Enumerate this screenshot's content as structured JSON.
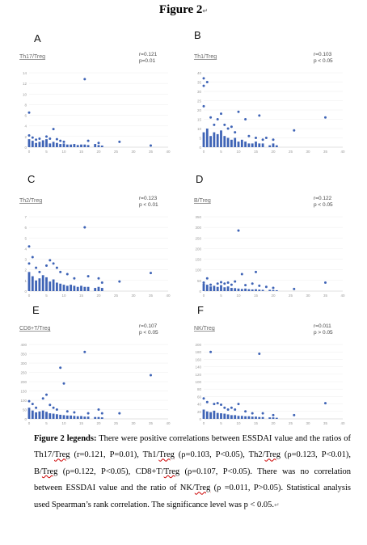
{
  "figure_title": "Figure 2",
  "panels": [
    {
      "letter": "A",
      "col": 0,
      "row": 0
    },
    {
      "letter": "B",
      "col": 1,
      "row": 0
    },
    {
      "letter": "C",
      "col": 0,
      "row": 1
    },
    {
      "letter": "D",
      "col": 1,
      "row": 1
    },
    {
      "letter": "E",
      "col": 0,
      "row": 2
    },
    {
      "letter": "F",
      "col": 1,
      "row": 2
    }
  ],
  "chart_data": [
    {
      "type": "scatter",
      "title": "Th17/Treg",
      "stat_r": "r=0.121",
      "stat_p": "p=0.01",
      "xlim": [
        0,
        40
      ],
      "ylim": [
        0,
        14
      ],
      "yticks": [
        "0",
        "2",
        "4",
        "6",
        "8",
        "10",
        "12",
        "14"
      ],
      "xticks": [
        "0",
        "5",
        "10",
        "15",
        "20",
        "25",
        "30",
        "35",
        "40"
      ],
      "bars": [
        {
          "x": 0,
          "y": 1.5
        },
        {
          "x": 1,
          "y": 1.2
        },
        {
          "x": 2,
          "y": 0.8
        },
        {
          "x": 3,
          "y": 1.0
        },
        {
          "x": 4,
          "y": 1.3
        },
        {
          "x": 5,
          "y": 1.5
        },
        {
          "x": 6,
          "y": 0.7
        },
        {
          "x": 7,
          "y": 1.0
        },
        {
          "x": 8,
          "y": 0.8
        },
        {
          "x": 9,
          "y": 0.6
        },
        {
          "x": 10,
          "y": 0.7
        },
        {
          "x": 11,
          "y": 0.5
        },
        {
          "x": 12,
          "y": 0.5
        },
        {
          "x": 13,
          "y": 0.6
        },
        {
          "x": 14,
          "y": 0.4
        },
        {
          "x": 15,
          "y": 0.5
        },
        {
          "x": 16,
          "y": 0.5
        },
        {
          "x": 17,
          "y": 0.4
        },
        {
          "x": 19,
          "y": 0.6
        },
        {
          "x": 20,
          "y": 0.4
        },
        {
          "x": 21,
          "y": 0.3
        }
      ],
      "points": [
        {
          "x": 0,
          "y": 6.5
        },
        {
          "x": 0,
          "y": 2.2
        },
        {
          "x": 1,
          "y": 1.8
        },
        {
          "x": 2,
          "y": 1.4
        },
        {
          "x": 3,
          "y": 1.6
        },
        {
          "x": 5,
          "y": 2.0
        },
        {
          "x": 6,
          "y": 1.6
        },
        {
          "x": 7,
          "y": 3.4
        },
        {
          "x": 8,
          "y": 1.5
        },
        {
          "x": 9,
          "y": 1.2
        },
        {
          "x": 10,
          "y": 1.0
        },
        {
          "x": 16,
          "y": 12.8
        },
        {
          "x": 17,
          "y": 1.2
        },
        {
          "x": 20,
          "y": 0.8
        },
        {
          "x": 26,
          "y": 1.0
        },
        {
          "x": 35,
          "y": 0.3
        }
      ]
    },
    {
      "type": "scatter",
      "title": "Th1/Treg",
      "stat_r": "r=0.103",
      "stat_p": "p < 0.05",
      "xlim": [
        0,
        40
      ],
      "ylim": [
        0,
        40
      ],
      "yticks": [
        "0",
        "5",
        "10",
        "15",
        "20",
        "25",
        "30",
        "35",
        "40"
      ],
      "xticks": [
        "0",
        "5",
        "10",
        "15",
        "20",
        "25",
        "30",
        "35",
        "40"
      ],
      "bars": [
        {
          "x": 0,
          "y": 8
        },
        {
          "x": 1,
          "y": 10
        },
        {
          "x": 2,
          "y": 6
        },
        {
          "x": 3,
          "y": 8
        },
        {
          "x": 4,
          "y": 7
        },
        {
          "x": 5,
          "y": 9
        },
        {
          "x": 6,
          "y": 6
        },
        {
          "x": 7,
          "y": 5
        },
        {
          "x": 8,
          "y": 4
        },
        {
          "x": 9,
          "y": 5
        },
        {
          "x": 10,
          "y": 3
        },
        {
          "x": 11,
          "y": 4
        },
        {
          "x": 12,
          "y": 3
        },
        {
          "x": 13,
          "y": 2
        },
        {
          "x": 14,
          "y": 2
        },
        {
          "x": 15,
          "y": 3
        },
        {
          "x": 16,
          "y": 2
        },
        {
          "x": 17,
          "y": 2
        },
        {
          "x": 19,
          "y": 1
        },
        {
          "x": 20,
          "y": 2
        },
        {
          "x": 21,
          "y": 1
        }
      ],
      "points": [
        {
          "x": 0,
          "y": 37
        },
        {
          "x": 0,
          "y": 33
        },
        {
          "x": 1,
          "y": 35
        },
        {
          "x": 0,
          "y": 22
        },
        {
          "x": 2,
          "y": 16
        },
        {
          "x": 3,
          "y": 12
        },
        {
          "x": 4,
          "y": 15
        },
        {
          "x": 5,
          "y": 18
        },
        {
          "x": 6,
          "y": 12
        },
        {
          "x": 7,
          "y": 10
        },
        {
          "x": 8,
          "y": 11
        },
        {
          "x": 9,
          "y": 8
        },
        {
          "x": 10,
          "y": 19
        },
        {
          "x": 12,
          "y": 15
        },
        {
          "x": 13,
          "y": 6
        },
        {
          "x": 15,
          "y": 5
        },
        {
          "x": 16,
          "y": 17
        },
        {
          "x": 17,
          "y": 4
        },
        {
          "x": 18,
          "y": 5
        },
        {
          "x": 20,
          "y": 4
        },
        {
          "x": 26,
          "y": 9
        },
        {
          "x": 35,
          "y": 16
        }
      ]
    },
    {
      "type": "scatter",
      "title": "Th2/Treg",
      "stat_r": "r=0.123",
      "stat_p": "p < 0.01",
      "xlim": [
        0,
        40
      ],
      "ylim": [
        0,
        7
      ],
      "yticks": [
        "0",
        "1",
        "2",
        "3",
        "4",
        "5",
        "6",
        "7"
      ],
      "xticks": [
        "0",
        "5",
        "10",
        "15",
        "20",
        "25",
        "30",
        "35",
        "40"
      ],
      "bars": [
        {
          "x": 0,
          "y": 1.8
        },
        {
          "x": 1,
          "y": 1.4
        },
        {
          "x": 2,
          "y": 1.0
        },
        {
          "x": 3,
          "y": 1.2
        },
        {
          "x": 4,
          "y": 1.5
        },
        {
          "x": 5,
          "y": 1.3
        },
        {
          "x": 6,
          "y": 0.9
        },
        {
          "x": 7,
          "y": 1.1
        },
        {
          "x": 8,
          "y": 0.8
        },
        {
          "x": 9,
          "y": 0.7
        },
        {
          "x": 10,
          "y": 0.6
        },
        {
          "x": 11,
          "y": 0.5
        },
        {
          "x": 12,
          "y": 0.6
        },
        {
          "x": 13,
          "y": 0.5
        },
        {
          "x": 14,
          "y": 0.4
        },
        {
          "x": 15,
          "y": 0.5
        },
        {
          "x": 16,
          "y": 0.4
        },
        {
          "x": 17,
          "y": 0.4
        },
        {
          "x": 19,
          "y": 0.3
        },
        {
          "x": 20,
          "y": 0.4
        },
        {
          "x": 21,
          "y": 0.3
        }
      ],
      "points": [
        {
          "x": 0,
          "y": 4.2
        },
        {
          "x": 1,
          "y": 3.2
        },
        {
          "x": 0,
          "y": 2.6
        },
        {
          "x": 2,
          "y": 2.2
        },
        {
          "x": 3,
          "y": 1.8
        },
        {
          "x": 5,
          "y": 2.4
        },
        {
          "x": 6,
          "y": 2.9
        },
        {
          "x": 7,
          "y": 2.6
        },
        {
          "x": 8,
          "y": 2.2
        },
        {
          "x": 9,
          "y": 1.8
        },
        {
          "x": 11,
          "y": 1.6
        },
        {
          "x": 13,
          "y": 1.2
        },
        {
          "x": 16,
          "y": 6.0
        },
        {
          "x": 17,
          "y": 1.4
        },
        {
          "x": 20,
          "y": 1.2
        },
        {
          "x": 21,
          "y": 0.8
        },
        {
          "x": 26,
          "y": 0.9
        },
        {
          "x": 35,
          "y": 1.7
        }
      ]
    },
    {
      "type": "scatter",
      "title": "B/Treg",
      "stat_r": "r=0.122",
      "stat_p": "p < 0.05",
      "xlim": [
        0,
        40
      ],
      "ylim": [
        0,
        350
      ],
      "yticks": [
        "0",
        "50",
        "100",
        "150",
        "200",
        "250",
        "300",
        "350"
      ],
      "xticks": [
        "0",
        "5",
        "10",
        "15",
        "20",
        "25",
        "30",
        "35",
        "40"
      ],
      "bars": [
        {
          "x": 0,
          "y": 35
        },
        {
          "x": 1,
          "y": 30
        },
        {
          "x": 2,
          "y": 22
        },
        {
          "x": 3,
          "y": 25
        },
        {
          "x": 4,
          "y": 20
        },
        {
          "x": 5,
          "y": 28
        },
        {
          "x": 6,
          "y": 18
        },
        {
          "x": 7,
          "y": 22
        },
        {
          "x": 8,
          "y": 15
        },
        {
          "x": 9,
          "y": 14
        },
        {
          "x": 10,
          "y": 12
        },
        {
          "x": 11,
          "y": 10
        },
        {
          "x": 12,
          "y": 12
        },
        {
          "x": 13,
          "y": 9
        },
        {
          "x": 14,
          "y": 8
        },
        {
          "x": 15,
          "y": 9
        },
        {
          "x": 16,
          "y": 7
        },
        {
          "x": 17,
          "y": 6
        },
        {
          "x": 19,
          "y": 6
        },
        {
          "x": 20,
          "y": 5
        },
        {
          "x": 21,
          "y": 4
        }
      ],
      "points": [
        {
          "x": 0,
          "y": 40
        },
        {
          "x": 1,
          "y": 60
        },
        {
          "x": 2,
          "y": 30
        },
        {
          "x": 4,
          "y": 35
        },
        {
          "x": 5,
          "y": 42
        },
        {
          "x": 6,
          "y": 35
        },
        {
          "x": 7,
          "y": 40
        },
        {
          "x": 8,
          "y": 30
        },
        {
          "x": 9,
          "y": 45
        },
        {
          "x": 10,
          "y": 285
        },
        {
          "x": 11,
          "y": 80
        },
        {
          "x": 12,
          "y": 28
        },
        {
          "x": 14,
          "y": 35
        },
        {
          "x": 15,
          "y": 90
        },
        {
          "x": 16,
          "y": 25
        },
        {
          "x": 18,
          "y": 20
        },
        {
          "x": 20,
          "y": 15
        },
        {
          "x": 26,
          "y": 10
        },
        {
          "x": 35,
          "y": 40
        }
      ]
    },
    {
      "type": "scatter",
      "title": "CD8+T/Treg",
      "stat_r": "r=0.107",
      "stat_p": "p < 0.05",
      "xlim": [
        0,
        40
      ],
      "ylim": [
        0,
        400
      ],
      "yticks": [
        "0",
        "50",
        "100",
        "150",
        "200",
        "250",
        "300",
        "350",
        "400"
      ],
      "xticks": [
        "0",
        "5",
        "10",
        "15",
        "20",
        "25",
        "30",
        "35",
        "40"
      ],
      "bars": [
        {
          "x": 0,
          "y": 60
        },
        {
          "x": 1,
          "y": 45
        },
        {
          "x": 2,
          "y": 35
        },
        {
          "x": 3,
          "y": 40
        },
        {
          "x": 4,
          "y": 45
        },
        {
          "x": 5,
          "y": 38
        },
        {
          "x": 6,
          "y": 30
        },
        {
          "x": 7,
          "y": 28
        },
        {
          "x": 8,
          "y": 25
        },
        {
          "x": 9,
          "y": 22
        },
        {
          "x": 10,
          "y": 20
        },
        {
          "x": 11,
          "y": 18
        },
        {
          "x": 12,
          "y": 18
        },
        {
          "x": 13,
          "y": 16
        },
        {
          "x": 14,
          "y": 14
        },
        {
          "x": 15,
          "y": 15
        },
        {
          "x": 16,
          "y": 12
        },
        {
          "x": 17,
          "y": 12
        },
        {
          "x": 19,
          "y": 10
        },
        {
          "x": 20,
          "y": 10
        },
        {
          "x": 21,
          "y": 8
        }
      ],
      "points": [
        {
          "x": 0,
          "y": 95
        },
        {
          "x": 1,
          "y": 80
        },
        {
          "x": 2,
          "y": 60
        },
        {
          "x": 4,
          "y": 110
        },
        {
          "x": 5,
          "y": 130
        },
        {
          "x": 6,
          "y": 75
        },
        {
          "x": 7,
          "y": 60
        },
        {
          "x": 8,
          "y": 50
        },
        {
          "x": 9,
          "y": 275
        },
        {
          "x": 10,
          "y": 190
        },
        {
          "x": 11,
          "y": 40
        },
        {
          "x": 13,
          "y": 35
        },
        {
          "x": 16,
          "y": 360
        },
        {
          "x": 17,
          "y": 30
        },
        {
          "x": 20,
          "y": 50
        },
        {
          "x": 21,
          "y": 30
        },
        {
          "x": 26,
          "y": 30
        },
        {
          "x": 35,
          "y": 235
        }
      ]
    },
    {
      "type": "scatter",
      "title": "NK/Treg",
      "stat_r": "r=0.011",
      "stat_p": "p > 0.05",
      "xlim": [
        0,
        40
      ],
      "ylim": [
        0,
        200
      ],
      "yticks": [
        "0",
        "20",
        "40",
        "60",
        "80",
        "100",
        "120",
        "140",
        "160",
        "180",
        "200"
      ],
      "xticks": [
        "0",
        "5",
        "10",
        "15",
        "20",
        "25",
        "30",
        "35",
        "40"
      ],
      "bars": [
        {
          "x": 0,
          "y": 25
        },
        {
          "x": 1,
          "y": 20
        },
        {
          "x": 2,
          "y": 18
        },
        {
          "x": 3,
          "y": 22
        },
        {
          "x": 4,
          "y": 16
        },
        {
          "x": 5,
          "y": 15
        },
        {
          "x": 6,
          "y": 14
        },
        {
          "x": 7,
          "y": 12
        },
        {
          "x": 8,
          "y": 10
        },
        {
          "x": 9,
          "y": 10
        },
        {
          "x": 10,
          "y": 8
        },
        {
          "x": 11,
          "y": 8
        },
        {
          "x": 12,
          "y": 7
        },
        {
          "x": 13,
          "y": 7
        },
        {
          "x": 14,
          "y": 6
        },
        {
          "x": 15,
          "y": 6
        },
        {
          "x": 16,
          "y": 5
        },
        {
          "x": 17,
          "y": 5
        },
        {
          "x": 19,
          "y": 4
        },
        {
          "x": 20,
          "y": 4
        },
        {
          "x": 21,
          "y": 3
        }
      ],
      "points": [
        {
          "x": 0,
          "y": 55
        },
        {
          "x": 1,
          "y": 45
        },
        {
          "x": 2,
          "y": 180
        },
        {
          "x": 3,
          "y": 40
        },
        {
          "x": 4,
          "y": 42
        },
        {
          "x": 5,
          "y": 38
        },
        {
          "x": 6,
          "y": 30
        },
        {
          "x": 7,
          "y": 25
        },
        {
          "x": 8,
          "y": 30
        },
        {
          "x": 9,
          "y": 25
        },
        {
          "x": 10,
          "y": 40
        },
        {
          "x": 12,
          "y": 20
        },
        {
          "x": 14,
          "y": 15
        },
        {
          "x": 16,
          "y": 175
        },
        {
          "x": 17,
          "y": 15
        },
        {
          "x": 20,
          "y": 10
        },
        {
          "x": 26,
          "y": 10
        },
        {
          "x": 35,
          "y": 42
        }
      ]
    }
  ],
  "legend": {
    "lead": "Figure 2 legends:",
    "text_1": " There were positive correlations between ESSDAI value and the ratios of Th17/",
    "treg_1": "Treg",
    "text_2": " (r=0.121, P=0.01), Th1/",
    "treg_2": "Treg",
    "text_3": " (ρ=0.103, P<0.05), Th2/",
    "treg_3": "Treg",
    "text_4": " (ρ=0.123, P<0.01), B/",
    "treg_4": "Treg",
    "text_5": " (ρ=0.122, P<0.05), CD8+T/",
    "treg_5": "Treg",
    "text_6": " (ρ=0.107, P<0.05). There was no correlation between ESSDAI value and the ratio of NK/",
    "treg_6": "Treg",
    "text_7": " (ρ =0.011, P>0.05). Statistical analysis used Spearman’s rank correlation. The significance level was p < 0.05."
  }
}
